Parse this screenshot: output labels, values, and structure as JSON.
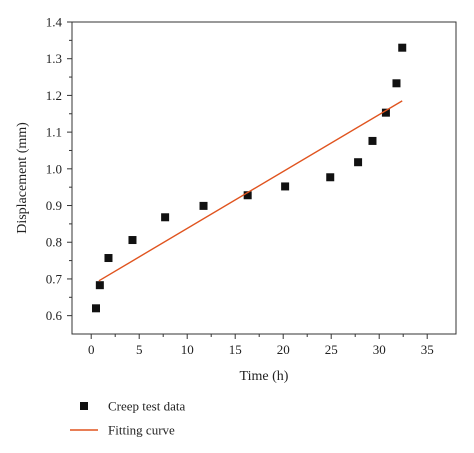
{
  "chart_data": {
    "type": "scatter",
    "xlabel": "Time (h)",
    "ylabel": "Displacement (mm)",
    "xlim": [
      -2,
      38
    ],
    "ylim": [
      0.55,
      1.4
    ],
    "xticks": [
      0,
      5,
      10,
      15,
      20,
      25,
      30,
      35
    ],
    "yticks": [
      0.6,
      0.7,
      0.8,
      0.9,
      1.0,
      1.1,
      1.2,
      1.3,
      1.4
    ],
    "xtick_labels": [
      "0",
      "5",
      "10",
      "15",
      "20",
      "25",
      "30",
      "35"
    ],
    "ytick_labels": [
      "0.6",
      "0.7",
      "0.8",
      "0.9",
      "1.0",
      "1.1",
      "1.2",
      "1.3",
      "1.4"
    ],
    "grid": false,
    "legend_placement": "bottom",
    "series": [
      {
        "name": "Creep test data",
        "kind": "scatter",
        "marker": "square",
        "color": "#111111",
        "x": [
          0.5,
          0.9,
          1.8,
          4.3,
          7.7,
          11.7,
          16.3,
          20.2,
          24.9,
          27.8,
          29.3,
          30.7,
          31.8,
          32.4
        ],
        "y": [
          0.62,
          0.683,
          0.757,
          0.806,
          0.868,
          0.899,
          0.928,
          0.952,
          0.977,
          1.018,
          1.076,
          1.153,
          1.233,
          1.33
        ]
      },
      {
        "name": "Fitting curve",
        "kind": "line",
        "color": "#e0541f",
        "x": [
          0.8,
          32.4
        ],
        "y": [
          0.695,
          1.185
        ]
      }
    ]
  }
}
